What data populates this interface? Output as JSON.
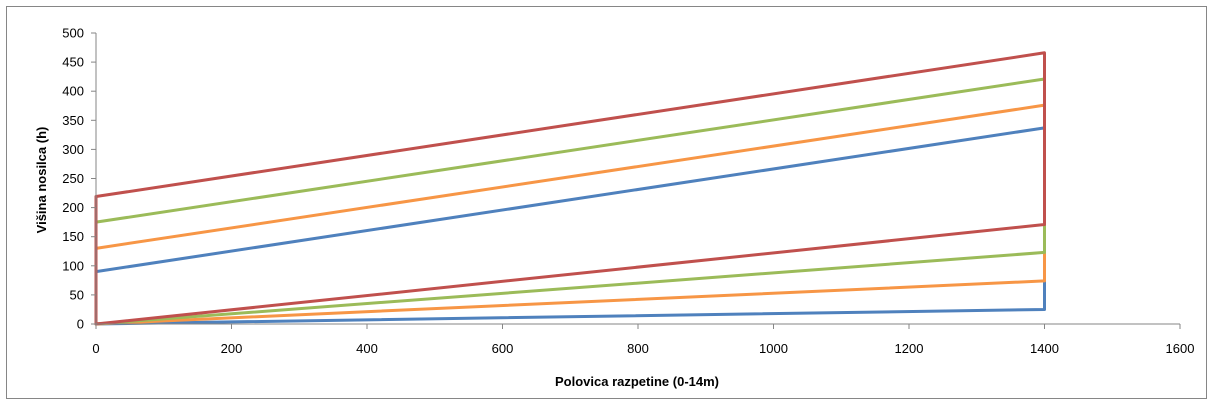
{
  "chart_data": {
    "type": "line",
    "title": "",
    "xlabel": "Polovica razpetine (0-14m)",
    "ylabel": "Višina nosilca (h)",
    "xlim": [
      0,
      1600
    ],
    "ylim": [
      0,
      500
    ],
    "xticks": [
      0,
      200,
      400,
      600,
      800,
      1000,
      1200,
      1400,
      1600
    ],
    "yticks": [
      0,
      50,
      100,
      150,
      200,
      250,
      300,
      350,
      400,
      450,
      500
    ],
    "grid": false,
    "legend": "none",
    "series": [
      {
        "color": "#4f81bd",
        "x": [
          0,
          1400,
          1400,
          0,
          0
        ],
        "y": [
          90,
          337,
          25,
          0,
          90
        ]
      },
      {
        "color": "#f79646",
        "x": [
          0,
          1400,
          1400,
          0,
          0
        ],
        "y": [
          130,
          376,
          74,
          0,
          130
        ]
      },
      {
        "color": "#9bbb59",
        "x": [
          0,
          1400,
          1400,
          0,
          0
        ],
        "y": [
          175,
          421,
          123,
          0,
          175
        ]
      },
      {
        "color": "#c0504d",
        "x": [
          0,
          1400,
          1400,
          0,
          0
        ],
        "y": [
          219,
          466,
          171,
          0,
          219
        ]
      }
    ]
  }
}
